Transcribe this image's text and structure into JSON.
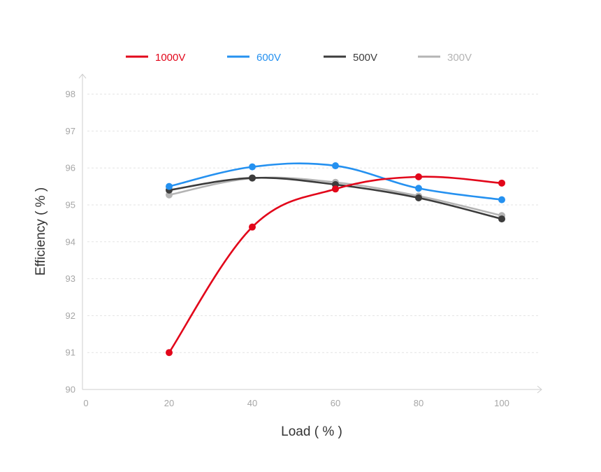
{
  "chart_data": {
    "type": "line",
    "xlabel": "Load ( % )",
    "ylabel": "Efficiency ( % )",
    "x": [
      20,
      40,
      60,
      80,
      100
    ],
    "xlim": [
      0,
      110
    ],
    "ylim": [
      90,
      98.5
    ],
    "xticks": [
      0,
      20,
      40,
      60,
      80,
      100
    ],
    "yticks": [
      90,
      91,
      92,
      93,
      94,
      95,
      96,
      97,
      98
    ],
    "grid": true,
    "legend_position": "top",
    "smooth": true,
    "series": [
      {
        "name": "1000V",
        "color": "#e2061a",
        "values": [
          91.0,
          94.4,
          95.43,
          95.76,
          95.59
        ]
      },
      {
        "name": "600V",
        "color": "#2591f0",
        "values": [
          95.5,
          96.03,
          96.06,
          95.45,
          95.14
        ]
      },
      {
        "name": "500V",
        "color": "#3c3c3c",
        "values": [
          95.4,
          95.73,
          95.55,
          95.19,
          94.62
        ]
      },
      {
        "name": "300V",
        "color": "#b4b4b4",
        "values": [
          95.27,
          95.72,
          95.61,
          95.24,
          94.71
        ]
      }
    ]
  }
}
